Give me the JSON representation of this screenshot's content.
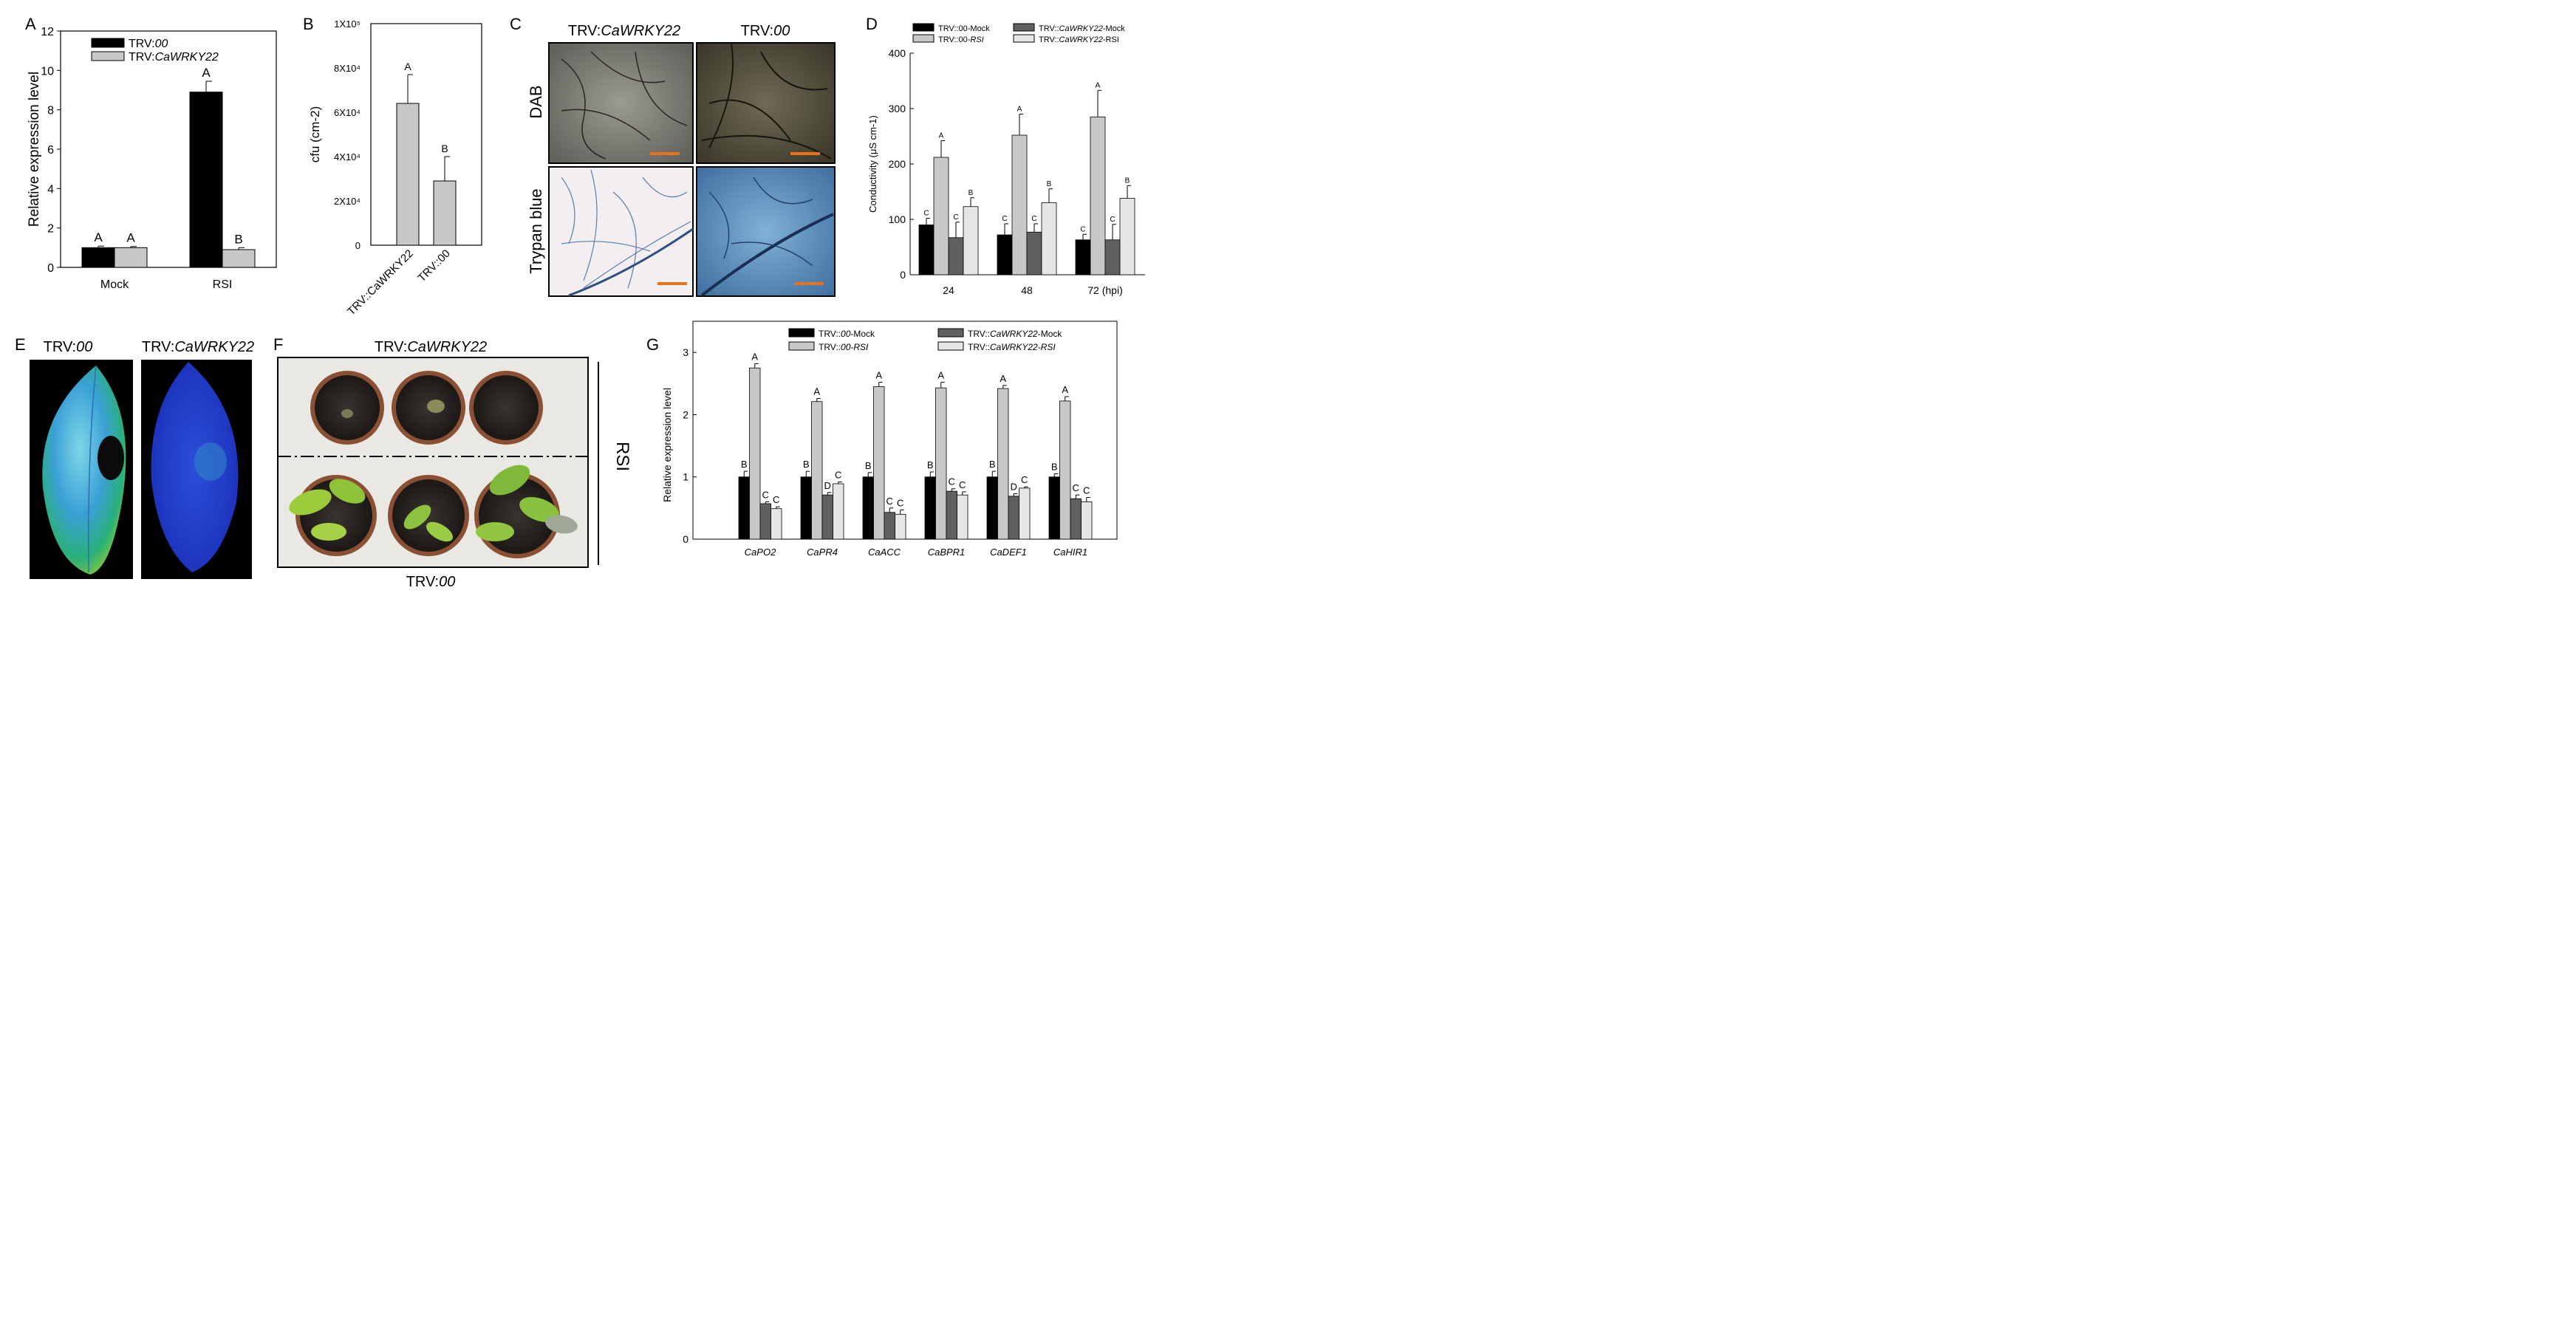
{
  "colors": {
    "black": "#000000",
    "light_gray": "#c8c8c8",
    "dark_gray": "#606060",
    "pale_gray": "#e6e6e6",
    "scale_bar": "#e8731e"
  },
  "panel_letters": {
    "A": "A",
    "B": "B",
    "C": "C",
    "D": "D",
    "E": "E",
    "F": "F",
    "G": "G"
  },
  "panel_c": {
    "col_labels": {
      "left": {
        "prefix": "TRV:",
        "italic": "CaWRKY22"
      },
      "right": {
        "prefix": "TRV:",
        "italic": "00"
      }
    },
    "row_labels": [
      "DAB",
      "Trypan blue"
    ],
    "images": [
      "DAB stained leaf TRV:CaWRKY22",
      "DAB stained leaf TRV:00",
      "Trypan blue stained leaf TRV:CaWRKY22",
      "Trypan blue stained leaf TRV:00"
    ]
  },
  "panel_e": {
    "labels": {
      "left": {
        "prefix": "TRV:",
        "italic": "00"
      },
      "right": {
        "prefix": "TRV:",
        "italic": "CaWRKY22"
      }
    }
  },
  "panel_f": {
    "top_label": {
      "prefix": "TRV:",
      "italic": "CaWRKY22"
    },
    "bottom_label": {
      "prefix": "TRV:",
      "italic": "00"
    },
    "side_label": "RSI"
  },
  "chart_data": [
    {
      "panel": "A",
      "type": "bar",
      "ylabel": "Relative expression level",
      "ylim": [
        0,
        12
      ],
      "yticks": [
        "0",
        "2",
        "4",
        "6",
        "8",
        "10",
        "12"
      ],
      "categories": [
        "Mock",
        "RSI"
      ],
      "legend": [
        {
          "prefix": "TRV:",
          "italic": "00",
          "color": "#000000"
        },
        {
          "prefix": "TRV:",
          "italic": "CaWRKY22",
          "color": "#c8c8c8"
        }
      ],
      "series": [
        {
          "name": "TRV:00",
          "color": "#000000",
          "values": [
            1.0,
            8.9
          ],
          "errors": [
            0.08,
            0.55
          ],
          "letters": [
            "A",
            "A"
          ]
        },
        {
          "name": "TRV:CaWRKY22",
          "color": "#c8c8c8",
          "values": [
            1.0,
            0.9
          ],
          "errors": [
            0.06,
            0.1
          ],
          "letters": [
            "A",
            "B"
          ]
        }
      ]
    },
    {
      "panel": "B",
      "type": "bar",
      "ylabel": "cfu (cm-2)",
      "ylim": [
        0,
        100000
      ],
      "yticks": [
        "0",
        "2X10⁴",
        "4X10⁴",
        "6X10⁴",
        "8X10⁴",
        "1X10⁵"
      ],
      "categories": [
        "TRV::CaWRKY22",
        "TRV::00"
      ],
      "values": [
        64000,
        29000
      ],
      "errors": [
        13000,
        11000
      ],
      "letters": [
        "A",
        "B"
      ],
      "bar_color": "#c8c8c8"
    },
    {
      "panel": "D",
      "type": "bar",
      "ylabel": "Conductivity (μS cm-1)",
      "ylim": [
        0,
        400
      ],
      "yticks": [
        "0",
        "100",
        "200",
        "300",
        "400"
      ],
      "categories": [
        "24",
        "48",
        "72 (hpi)"
      ],
      "legend": [
        {
          "prefix": "TRV::00-Mock",
          "italic": "",
          "color": "#000000"
        },
        {
          "prefix": "TRV::00-",
          "italic": "RSI",
          "color": "#c8c8c8"
        },
        {
          "prefix": "TRV::",
          "italic": "CaWRKY22",
          "suffix": "-Mock",
          "color": "#606060"
        },
        {
          "prefix": "TRV::",
          "italic": "CaWRKY22",
          "suffix": "-RSI",
          "color": "#e6e6e6"
        }
      ],
      "series": [
        {
          "name": "TRV::00-Mock",
          "color": "#000000",
          "values": [
            90,
            72,
            63
          ],
          "errors": [
            12,
            20,
            10
          ],
          "letters": [
            "C",
            "C",
            "C"
          ]
        },
        {
          "name": "TRV::00-RSI",
          "color": "#c8c8c8",
          "values": [
            212,
            252,
            285
          ],
          "errors": [
            30,
            38,
            48
          ],
          "letters": [
            "A",
            "A",
            "A"
          ]
        },
        {
          "name": "TRV::CaWRKY22-Mock",
          "color": "#606060",
          "values": [
            67,
            77,
            63
          ],
          "errors": [
            28,
            15,
            28
          ],
          "letters": [
            "C",
            "C",
            "C"
          ]
        },
        {
          "name": "TRV::CaWRKY22-RSI",
          "color": "#e6e6e6",
          "values": [
            123,
            130,
            138
          ],
          "errors": [
            16,
            25,
            23
          ],
          "letters": [
            "B",
            "B",
            "B"
          ]
        }
      ]
    },
    {
      "panel": "G",
      "type": "bar",
      "ylabel": "Relative expression level",
      "ylim": [
        0,
        3.5
      ],
      "yticks": [
        "0",
        "1",
        "2",
        "3"
      ],
      "categories": [
        "CaPO2",
        "CaPR4",
        "CaACC",
        "CaBPR1",
        "CaDEF1",
        "CaHIR1"
      ],
      "legend": [
        {
          "prefix": "TRV::",
          "italic": "00",
          "suffix": "-Mock",
          "color": "#000000"
        },
        {
          "prefix": "TRV::",
          "italic": "CaWRKY22",
          "suffix": "-Mock",
          "color": "#606060"
        },
        {
          "prefix": "TRV::",
          "italic": "00-RSI",
          "suffix": "",
          "color": "#c8c8c8"
        },
        {
          "prefix": "TRV::",
          "italic": "CaWRKY22-RSI",
          "suffix": "",
          "color": "#e6e6e6"
        }
      ],
      "series": [
        {
          "name": "TRV::00-Mock",
          "color": "#000000",
          "values": [
            1.0,
            1.0,
            1.0,
            1.0,
            1.0,
            1.0
          ],
          "errors": [
            0.09,
            0.09,
            0.07,
            0.08,
            0.09,
            0.05
          ],
          "letters": [
            "B",
            "B",
            "B",
            "B",
            "B",
            "B"
          ]
        },
        {
          "name": "TRV::00-RSI",
          "color": "#c8c8c8",
          "values": [
            2.75,
            2.21,
            2.45,
            2.43,
            2.42,
            2.22
          ],
          "errors": [
            0.07,
            0.05,
            0.07,
            0.09,
            0.05,
            0.07
          ],
          "letters": [
            "A",
            "A",
            "A",
            "A",
            "A",
            "A"
          ]
        },
        {
          "name": "TRV::CaWRKY22-Mock",
          "color": "#606060",
          "values": [
            0.57,
            0.71,
            0.43,
            0.77,
            0.69,
            0.65
          ],
          "errors": [
            0.03,
            0.04,
            0.07,
            0.04,
            0.04,
            0.06
          ],
          "letters": [
            "C",
            "D",
            "C",
            "C",
            "D",
            "C"
          ]
        },
        {
          "name": "TRV::CaWRKY22-RSI",
          "color": "#e6e6e6",
          "values": [
            0.49,
            0.89,
            0.4,
            0.71,
            0.82,
            0.6
          ],
          "errors": [
            0.03,
            0.03,
            0.07,
            0.05,
            0.02,
            0.07
          ],
          "letters": [
            "C",
            "C",
            "C",
            "C",
            "C",
            "C"
          ]
        }
      ]
    }
  ]
}
